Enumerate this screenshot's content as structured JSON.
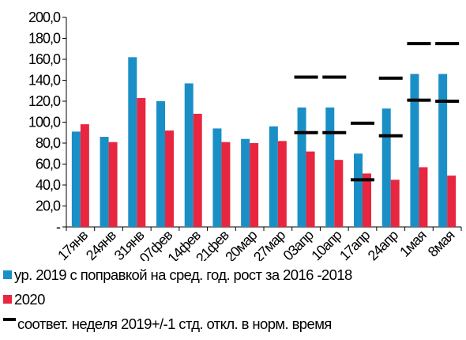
{
  "chart_data": {
    "type": "bar",
    "categories": [
      "17янв",
      "24янв",
      "31янв",
      "07фев",
      "14фев",
      "21фев",
      "20мар",
      "27мар",
      "03апр",
      "10апр",
      "17апр",
      "24апр",
      "1мая",
      "8мая"
    ],
    "series": [
      {
        "name": "ур. 2019 с поправкой на сред. год. рост за 2016 -2018",
        "color": "#1a8fc6",
        "values": [
          91,
          86,
          162,
          120,
          137,
          94,
          84,
          96,
          114,
          114,
          70,
          113,
          146,
          146
        ]
      },
      {
        "name": "2020",
        "color": "#e8263f",
        "values": [
          98,
          81,
          123,
          92,
          108,
          81,
          80,
          82,
          72,
          64,
          51,
          45,
          57,
          49
        ]
      }
    ],
    "markers": {
      "name": "соответ. неделя 2019+/-1 стд. откл. в норм. время",
      "color": "#000000",
      "upper": [
        null,
        null,
        null,
        null,
        null,
        null,
        null,
        null,
        143,
        143,
        99,
        142,
        175,
        175
      ],
      "lower": [
        null,
        null,
        null,
        null,
        null,
        null,
        null,
        null,
        90,
        90,
        45,
        87,
        121,
        120
      ]
    },
    "yticks": [
      "-",
      "20,0",
      "40,0",
      "60,0",
      "80,0",
      "100,0",
      "120,0",
      "140,0",
      "160,0",
      "180,0",
      "200,0"
    ],
    "ylim": [
      0,
      200
    ],
    "grid": false,
    "legend_position": "bottom"
  }
}
